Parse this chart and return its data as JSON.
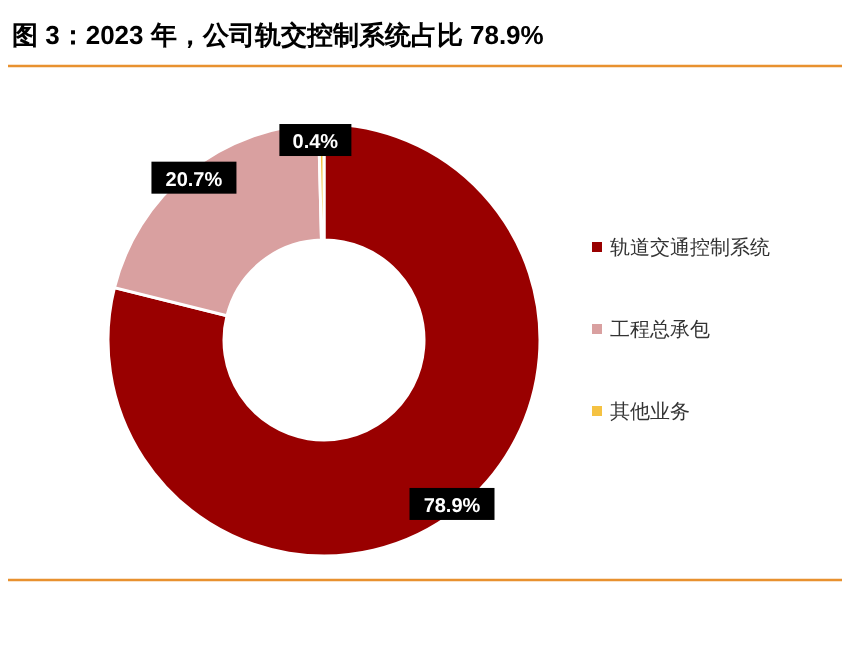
{
  "chart_data": {
    "type": "donut",
    "title": "图 3：2023 年，公司轨交控制系统占比 78.9%",
    "categories": [
      "轨道交通控制系统",
      "工程总承包",
      "其他业务"
    ],
    "values": [
      78.9,
      20.7,
      0.4
    ],
    "colors": [
      "#990000",
      "#d9a0a0",
      "#f5c242"
    ],
    "value_labels": [
      "78.9%",
      "20.7%",
      "0.4%"
    ],
    "legend": "right"
  }
}
